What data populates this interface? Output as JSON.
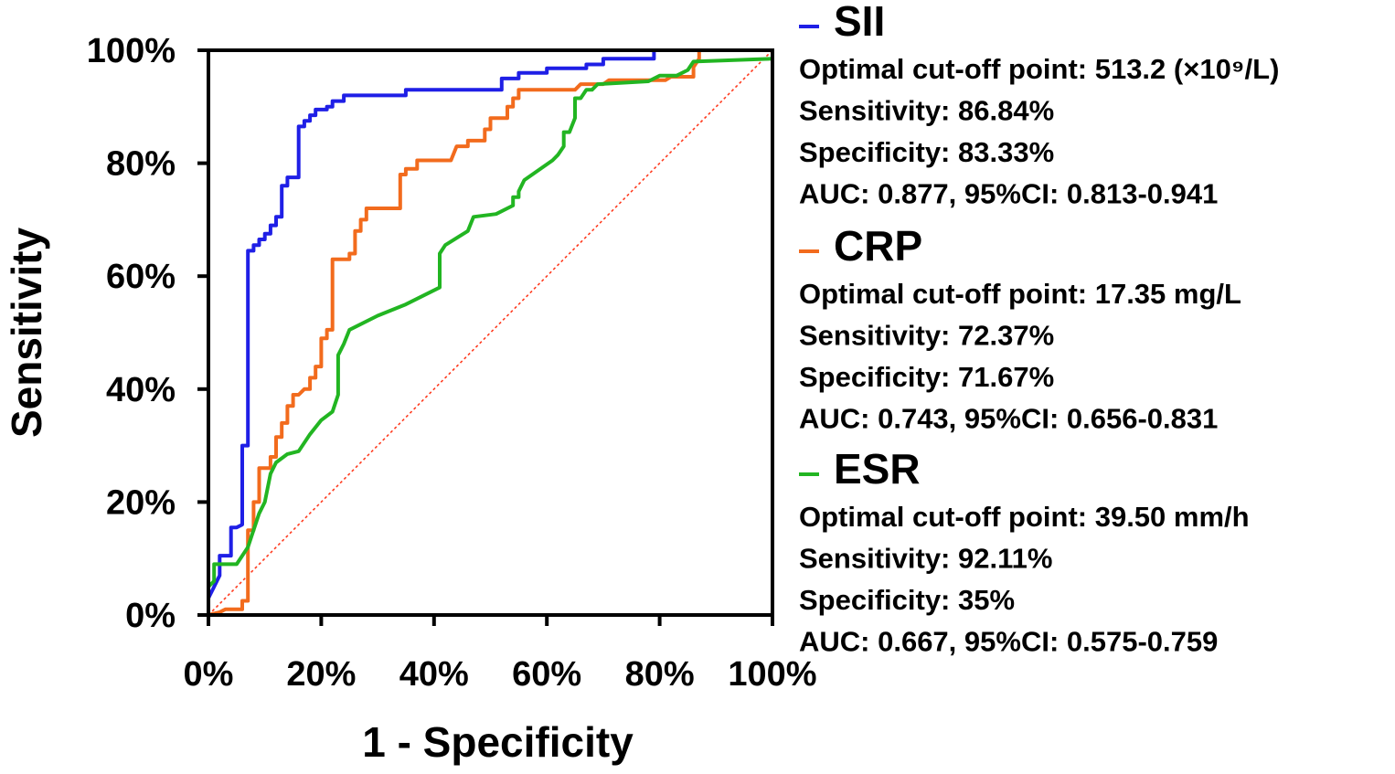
{
  "chart_data": {
    "type": "line",
    "title": "",
    "xlabel": "1 - Specificity",
    "ylabel": "Sensitivity",
    "xlim": [
      0,
      100
    ],
    "ylim": [
      0,
      100
    ],
    "x_ticks": [
      "0%",
      "20%",
      "40%",
      "60%",
      "80%",
      "100%"
    ],
    "y_ticks": [
      "0%",
      "20%",
      "40%",
      "60%",
      "80%",
      "100%"
    ],
    "grid": false,
    "legend_position": "right",
    "reference_line": {
      "points": [
        [
          0,
          0
        ],
        [
          100,
          100
        ]
      ],
      "color": "#ff3b1f",
      "style": "dotted"
    },
    "series": [
      {
        "name": "SII",
        "color": "#1f1fe6",
        "stats": [
          "Optimal cut-off point: 513.2 (×10⁹/L)",
          "Sensitivity: 86.84%",
          "Specificity: 83.33%",
          "AUC: 0.877, 95%CI: 0.813-0.941"
        ],
        "points": [
          [
            0,
            0
          ],
          [
            0,
            3
          ],
          [
            1,
            5
          ],
          [
            2,
            7
          ],
          [
            2,
            10.5
          ],
          [
            4,
            10.5
          ],
          [
            4,
            15.5
          ],
          [
            5,
            15.5
          ],
          [
            6,
            16
          ],
          [
            6,
            30
          ],
          [
            7,
            30
          ],
          [
            7,
            45
          ],
          [
            7,
            64.5
          ],
          [
            8,
            64.5
          ],
          [
            8,
            65.5
          ],
          [
            9,
            65.5
          ],
          [
            9,
            66.5
          ],
          [
            10,
            66.5
          ],
          [
            10,
            67.5
          ],
          [
            11,
            67.5
          ],
          [
            11,
            69
          ],
          [
            12,
            69
          ],
          [
            12,
            70.5
          ],
          [
            13,
            70.5
          ],
          [
            13,
            76
          ],
          [
            14,
            76
          ],
          [
            14,
            77.5
          ],
          [
            16,
            77.5
          ],
          [
            16,
            86.5
          ],
          [
            17,
            86.5
          ],
          [
            17,
            87.5
          ],
          [
            18,
            87.5
          ],
          [
            18,
            88.5
          ],
          [
            19,
            88.5
          ],
          [
            19,
            89.5
          ],
          [
            21,
            89.5
          ],
          [
            21,
            90
          ],
          [
            22,
            90
          ],
          [
            22,
            91
          ],
          [
            24,
            91
          ],
          [
            24,
            92
          ],
          [
            35,
            92
          ],
          [
            35,
            93
          ],
          [
            52,
            93
          ],
          [
            52,
            95
          ],
          [
            55,
            95
          ],
          [
            55,
            96
          ],
          [
            60,
            96
          ],
          [
            60,
            96.8
          ],
          [
            67,
            96.8
          ],
          [
            67,
            97.5
          ],
          [
            70,
            97.5
          ],
          [
            70,
            98.5
          ],
          [
            79,
            98.5
          ],
          [
            79,
            100
          ],
          [
            100,
            100
          ]
        ]
      },
      {
        "name": "CRP",
        "color": "#f26b1d",
        "stats": [
          "Optimal cut-off point: 17.35 mg/L",
          "Sensitivity: 72.37%",
          "Specificity: 71.67%",
          "AUC: 0.743, 95%CI: 0.656-0.831"
        ],
        "points": [
          [
            0,
            0
          ],
          [
            2,
            0.5
          ],
          [
            3,
            1
          ],
          [
            6,
            1
          ],
          [
            6,
            2.5
          ],
          [
            7,
            2.5
          ],
          [
            7,
            10
          ],
          [
            7,
            15
          ],
          [
            8,
            15
          ],
          [
            8,
            20
          ],
          [
            9,
            20
          ],
          [
            9,
            26
          ],
          [
            11,
            26
          ],
          [
            11,
            28
          ],
          [
            12,
            28
          ],
          [
            12,
            31.5
          ],
          [
            13,
            31.5
          ],
          [
            13,
            34
          ],
          [
            14,
            34
          ],
          [
            14,
            37
          ],
          [
            15,
            37
          ],
          [
            15,
            39
          ],
          [
            16,
            39
          ],
          [
            17,
            40
          ],
          [
            18,
            40
          ],
          [
            18,
            42
          ],
          [
            19,
            42
          ],
          [
            19,
            44
          ],
          [
            20,
            44
          ],
          [
            20,
            49
          ],
          [
            21,
            49
          ],
          [
            21,
            50.5
          ],
          [
            22,
            50.5
          ],
          [
            22,
            55
          ],
          [
            22,
            63
          ],
          [
            25,
            63
          ],
          [
            25,
            64
          ],
          [
            26,
            64
          ],
          [
            26,
            68
          ],
          [
            27,
            68
          ],
          [
            27,
            70
          ],
          [
            28,
            70
          ],
          [
            28,
            72
          ],
          [
            34,
            72
          ],
          [
            34,
            78
          ],
          [
            35,
            78
          ],
          [
            35,
            79
          ],
          [
            37,
            79
          ],
          [
            37,
            80.5
          ],
          [
            43,
            80.5
          ],
          [
            44,
            83
          ],
          [
            46,
            83
          ],
          [
            46,
            84
          ],
          [
            49,
            84
          ],
          [
            49,
            86
          ],
          [
            50,
            86
          ],
          [
            50,
            88
          ],
          [
            53,
            88
          ],
          [
            53,
            90
          ],
          [
            54,
            90
          ],
          [
            54,
            91.5
          ],
          [
            55,
            91.5
          ],
          [
            55,
            93
          ],
          [
            65,
            93
          ],
          [
            66,
            94
          ],
          [
            70,
            94
          ],
          [
            71,
            94.7
          ],
          [
            81,
            94.7
          ],
          [
            82,
            95.3
          ],
          [
            86,
            95.3
          ],
          [
            86,
            97
          ],
          [
            87,
            98.5
          ],
          [
            87,
            100
          ],
          [
            100,
            100
          ]
        ]
      },
      {
        "name": "ESR",
        "color": "#22b522",
        "stats": [
          "Optimal cut-off point: 39.50 mm/h",
          "Sensitivity: 92.11%",
          "Specificity: 35%",
          "AUC: 0.667, 95%CI: 0.575-0.759"
        ],
        "points": [
          [
            0,
            0
          ],
          [
            0,
            5
          ],
          [
            1,
            6
          ],
          [
            1,
            9
          ],
          [
            5,
            9
          ],
          [
            7,
            12
          ],
          [
            9,
            18
          ],
          [
            10,
            20
          ],
          [
            11,
            25
          ],
          [
            12,
            27
          ],
          [
            14,
            28.5
          ],
          [
            16,
            29
          ],
          [
            18,
            32
          ],
          [
            20,
            34.5
          ],
          [
            22,
            36
          ],
          [
            23,
            39
          ],
          [
            23,
            41
          ],
          [
            23,
            46
          ],
          [
            24,
            48
          ],
          [
            25,
            50.5
          ],
          [
            30,
            53
          ],
          [
            35,
            55
          ],
          [
            41,
            58
          ],
          [
            41,
            64
          ],
          [
            42,
            65.5
          ],
          [
            46,
            68
          ],
          [
            47,
            70.5
          ],
          [
            51,
            71
          ],
          [
            54,
            72.5
          ],
          [
            54,
            74
          ],
          [
            55,
            74
          ],
          [
            55,
            75
          ],
          [
            56,
            77
          ],
          [
            61,
            80.5
          ],
          [
            62,
            81.5
          ],
          [
            63,
            83
          ],
          [
            63,
            85.5
          ],
          [
            64,
            85.5
          ],
          [
            65,
            88
          ],
          [
            65,
            91.5
          ],
          [
            66,
            91.5
          ],
          [
            67,
            93
          ],
          [
            68,
            93
          ],
          [
            69,
            94
          ],
          [
            78,
            94.5
          ],
          [
            80,
            95.5
          ],
          [
            83,
            95.5
          ],
          [
            85,
            96.5
          ],
          [
            86,
            98
          ],
          [
            100,
            98.5
          ]
        ]
      }
    ]
  }
}
